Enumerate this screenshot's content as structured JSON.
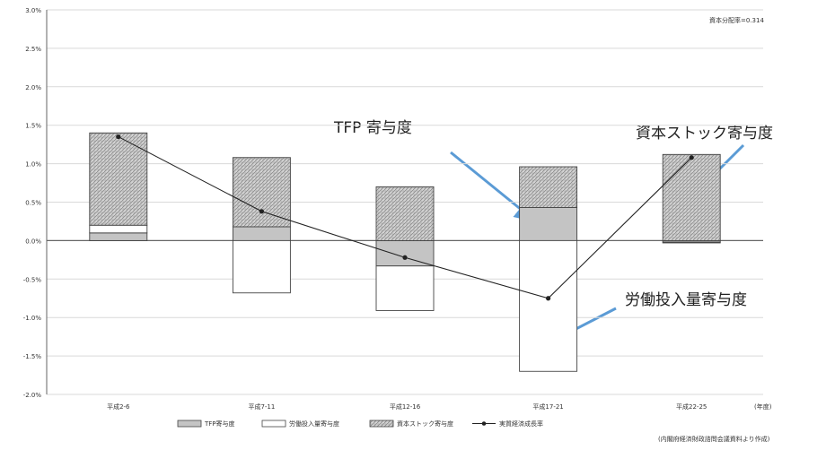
{
  "chart_data": {
    "type": "bar",
    "stacked": true,
    "categories": [
      "平成2-6",
      "平成7-11",
      "平成12-16",
      "平成17-21",
      "平成22-25"
    ],
    "x_unit": "(年度)",
    "ylim": [
      -2.0,
      3.0
    ],
    "yticks": [
      "3.0%",
      "2.5%",
      "2.0%",
      "1.5%",
      "1.0%",
      "0.5%",
      "0.0%",
      "-0.5%",
      "-1.0%",
      "-1.5%",
      "-2.0%"
    ],
    "grid": true,
    "series": [
      {
        "name": "TFP寄与度",
        "type": "bar",
        "fill": "#c4c4c4",
        "values": [
          0.1,
          0.18,
          -0.33,
          0.43,
          -0.02
        ]
      },
      {
        "name": "労働投入量寄与度",
        "type": "bar",
        "fill": "#ffffff",
        "values": [
          0.1,
          -0.68,
          -0.58,
          -1.7,
          -0.01
        ]
      },
      {
        "name": "資本ストック寄与度",
        "type": "bar",
        "fill": "hatch",
        "values": [
          1.2,
          0.9,
          0.7,
          0.53,
          1.12
        ]
      },
      {
        "name": "実質経済成長率",
        "type": "line",
        "values": [
          1.35,
          0.38,
          -0.22,
          -0.75,
          1.08
        ]
      }
    ],
    "annotation_top_right": "資本分配率=0.314",
    "source_note": "(内閣府経済財政諮問会議資料より作成)",
    "callouts": [
      "TFP 寄与度",
      "資本ストック寄与度",
      "労働投入量寄与度"
    ],
    "legend_position": "bottom",
    "colors": {
      "axis": "#555555",
      "grid": "#d9d9d9",
      "arrow": "#5b9bd5",
      "line": "#222222"
    }
  }
}
